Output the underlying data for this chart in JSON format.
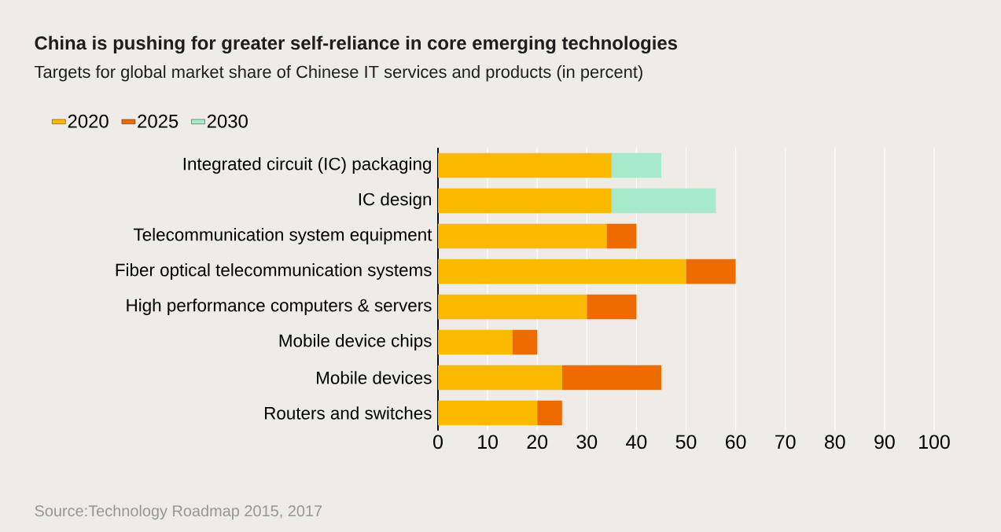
{
  "chart_data": {
    "type": "bar",
    "orientation": "horizontal",
    "stacked": true,
    "title": "China is pushing for greater self-reliance in core emerging technologies",
    "subtitle": "Targets for global market share of Chinese IT services and products (in percent)",
    "annotations": [
      "Source:Technology Roadmap 2015, 2017"
    ],
    "categories": [
      "Integrated circuit (IC) packaging",
      "IC design",
      "Telecommunication system equipment",
      "Fiber optical telecommunication systems",
      "High performance computers & servers",
      "Mobile device chips",
      "Mobile devices",
      "Routers and switches"
    ],
    "series": [
      {
        "name": "2020",
        "color": "#fbb900",
        "values": [
          35,
          35,
          34,
          50,
          30,
          15,
          25,
          20
        ]
      },
      {
        "name": "2025",
        "color": "#ee6b00",
        "values": [
          null,
          null,
          6,
          10,
          10,
          5,
          20,
          5
        ]
      },
      {
        "name": "2030",
        "color": "#a6e9cb",
        "values": [
          10,
          21,
          null,
          null,
          null,
          null,
          null,
          null
        ]
      }
    ],
    "xlim": [
      0,
      100
    ],
    "xticks": [
      0,
      10,
      20,
      30,
      40,
      50,
      60,
      70,
      80,
      90,
      100
    ],
    "grid": "x",
    "legend": "top left"
  }
}
